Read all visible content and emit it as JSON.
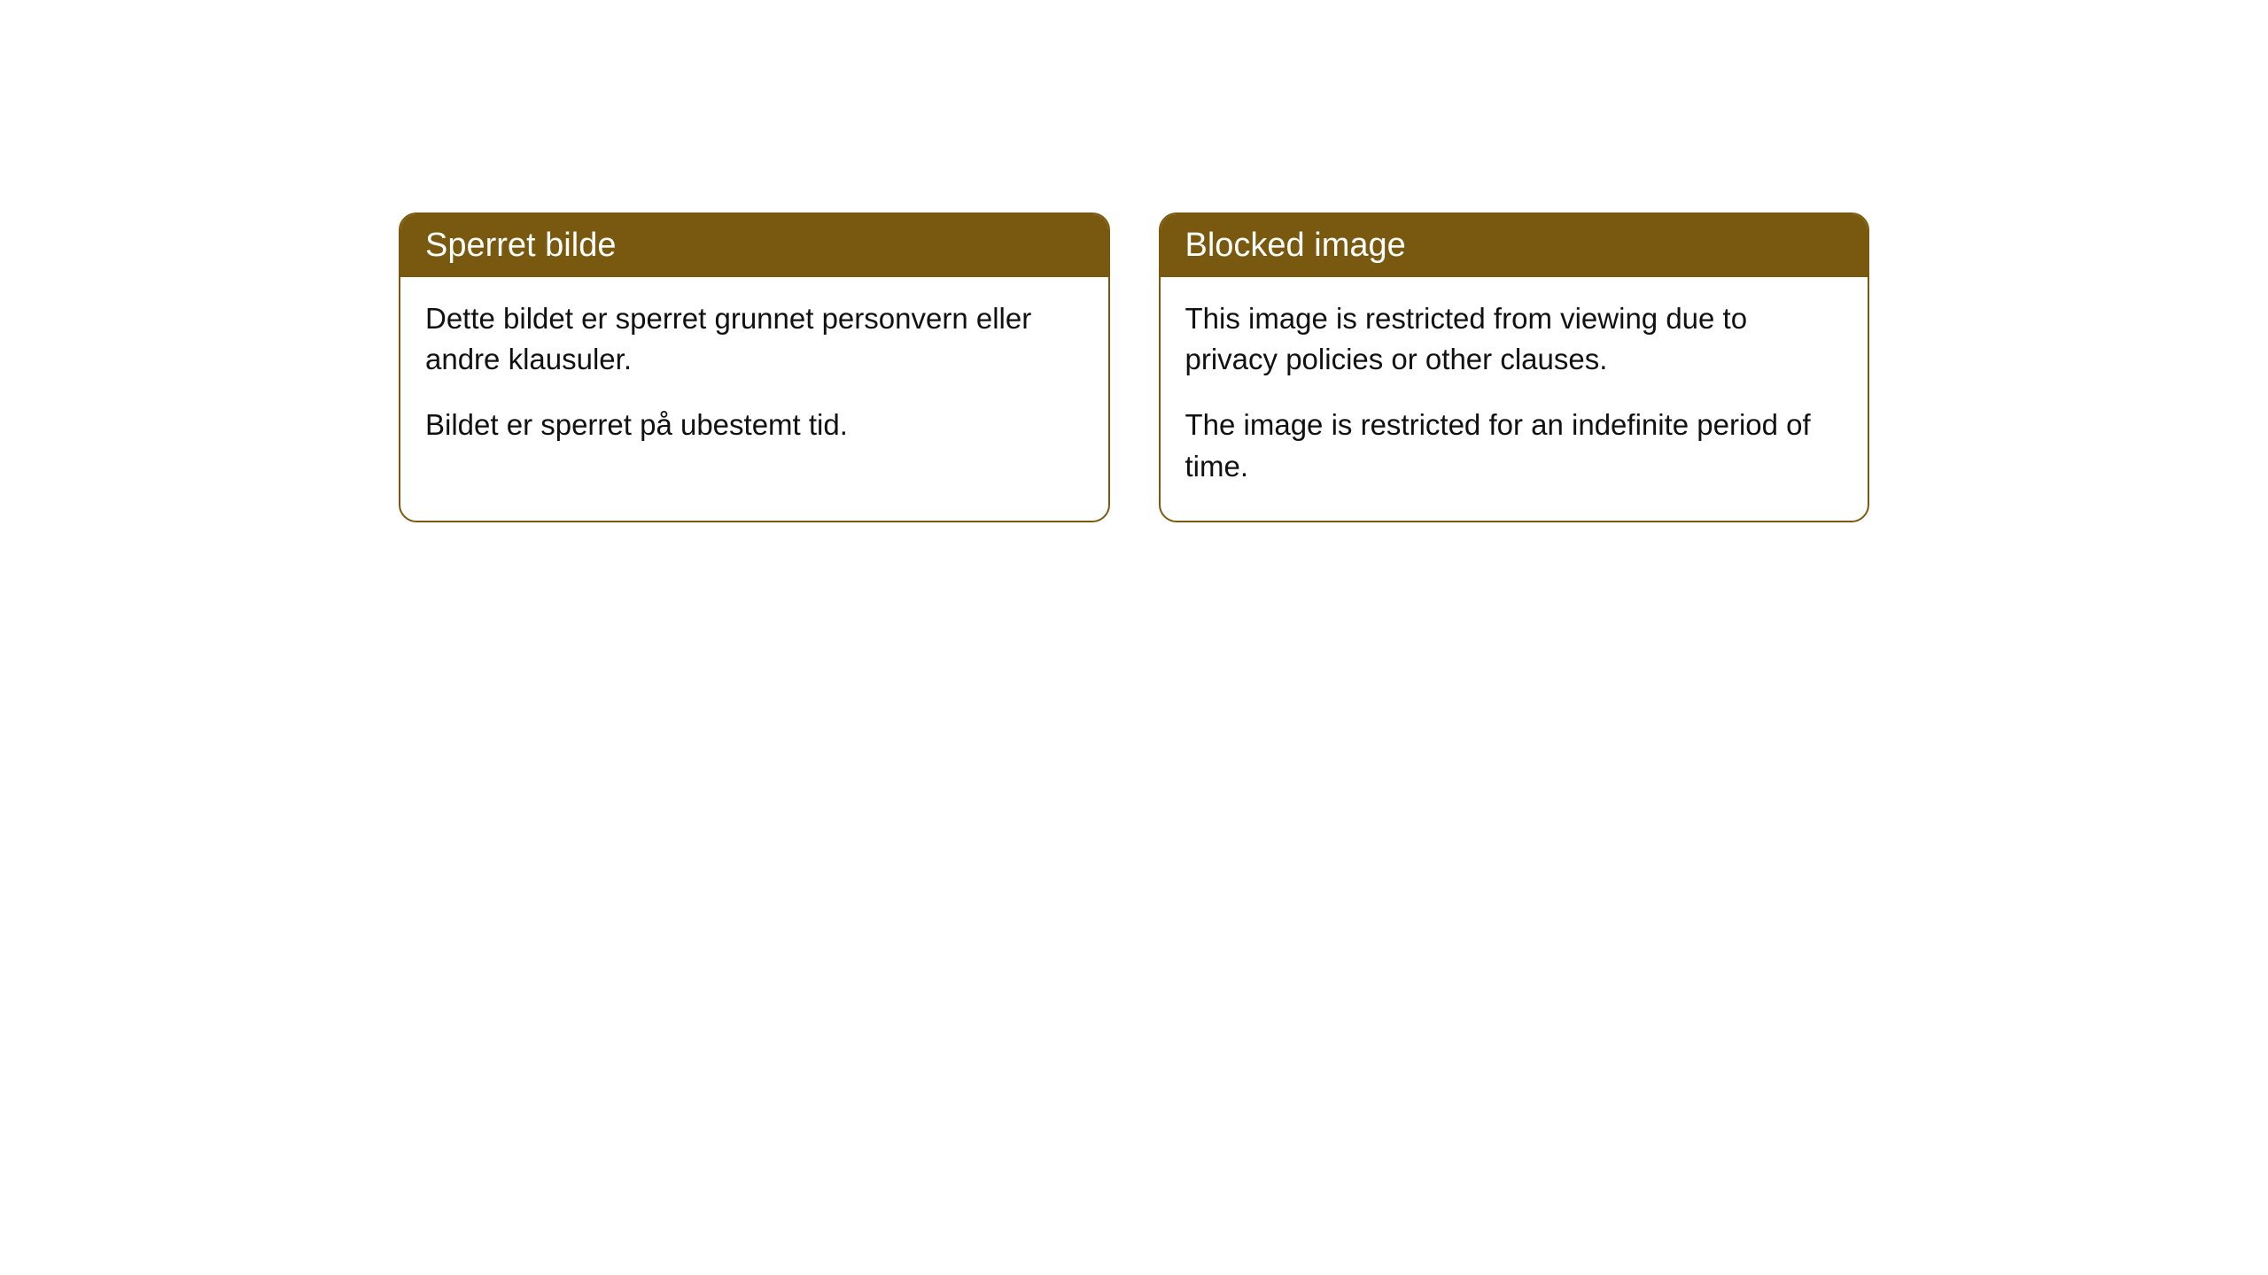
{
  "cards": [
    {
      "title": "Sperret bilde",
      "paragraph1": "Dette bildet er sperret grunnet personvern eller andre klausuler.",
      "paragraph2": "Bildet er sperret på ubestemt tid."
    },
    {
      "title": "Blocked image",
      "paragraph1": "This image is restricted from viewing due to privacy policies or other clauses.",
      "paragraph2": "The image is restricted for an indefinite period of time."
    }
  ],
  "styling": {
    "header_background_color": "#79590f",
    "header_text_color": "#ffffff",
    "border_color": "#79590f",
    "body_text_color": "#111111",
    "card_background_color": "#ffffff",
    "border_radius": 20,
    "header_fontsize": 38,
    "body_fontsize": 33
  }
}
